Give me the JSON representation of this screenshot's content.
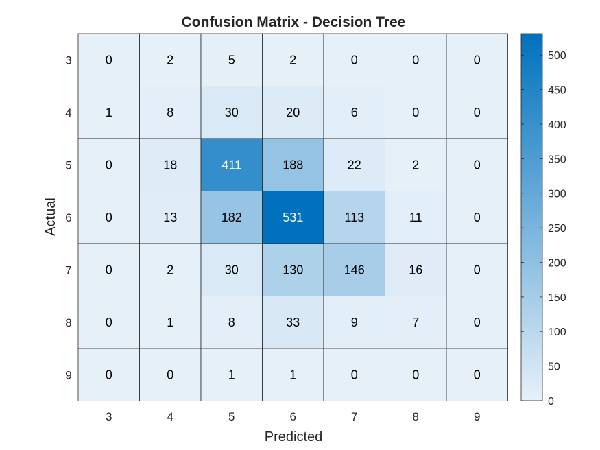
{
  "chart_data": {
    "type": "heatmap",
    "title": "Confusion Matrix - Decision Tree",
    "xlabel": "Predicted",
    "ylabel": "Actual",
    "x_categories": [
      "3",
      "4",
      "5",
      "6",
      "7",
      "8",
      "9"
    ],
    "y_categories": [
      "3",
      "4",
      "5",
      "6",
      "7",
      "8",
      "9"
    ],
    "values": [
      [
        0,
        2,
        5,
        2,
        0,
        0,
        0
      ],
      [
        1,
        8,
        30,
        20,
        6,
        0,
        0
      ],
      [
        0,
        18,
        411,
        188,
        22,
        2,
        0
      ],
      [
        0,
        13,
        182,
        531,
        113,
        11,
        0
      ],
      [
        0,
        2,
        30,
        130,
        146,
        16,
        0
      ],
      [
        0,
        1,
        8,
        33,
        9,
        7,
        0
      ],
      [
        0,
        0,
        1,
        1,
        0,
        0,
        0
      ]
    ],
    "colorbar": {
      "min": 0,
      "max": 531,
      "ticks": [
        0,
        50,
        100,
        150,
        200,
        250,
        300,
        350,
        400,
        450,
        500
      ]
    },
    "colors": {
      "low": "#e6f0f9",
      "high": "#0071bd",
      "cell_border": "#262626",
      "text_dark": "#000000",
      "text_light": "#ffffff"
    }
  }
}
